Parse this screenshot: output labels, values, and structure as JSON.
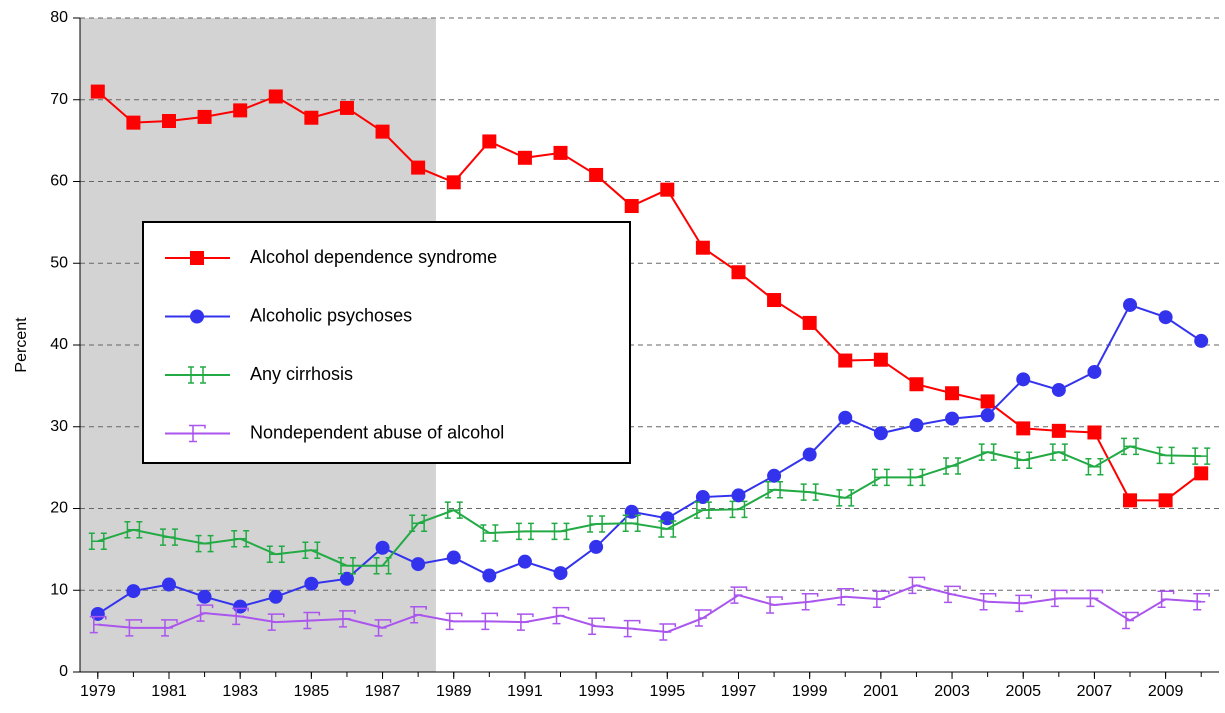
{
  "chart_data": {
    "type": "line",
    "y_label": "Percent",
    "x": [
      1979,
      1980,
      1981,
      1982,
      1983,
      1984,
      1985,
      1986,
      1987,
      1988,
      1989,
      1990,
      1991,
      1992,
      1993,
      1994,
      1995,
      1996,
      1997,
      1998,
      1999,
      2000,
      2001,
      2002,
      2003,
      2004,
      2005,
      2006,
      2007,
      2008,
      2009,
      2010
    ],
    "series": [
      {
        "name": "Alcohol dependence syndrome",
        "color": "#ff0000",
        "marker": "square",
        "values": [
          71.0,
          67.2,
          67.4,
          67.9,
          68.7,
          70.4,
          67.8,
          69.0,
          66.1,
          61.7,
          59.9,
          64.9,
          62.9,
          63.5,
          60.8,
          57.0,
          59.0,
          51.9,
          48.9,
          45.5,
          42.7,
          38.1,
          38.2,
          35.2,
          34.1,
          33.1,
          29.8,
          29.5,
          29.3,
          21.0,
          21.0,
          24.3
        ]
      },
      {
        "name": "Alcoholic psychoses",
        "color": "#3333ee",
        "marker": "circle",
        "values": [
          7.1,
          9.9,
          10.7,
          9.2,
          8.0,
          9.2,
          10.8,
          11.4,
          15.2,
          13.2,
          14.0,
          11.8,
          13.5,
          12.1,
          15.3,
          19.6,
          18.8,
          21.4,
          21.6,
          24.0,
          26.6,
          31.1,
          29.2,
          30.2,
          31.0,
          31.4,
          35.8,
          34.5,
          36.7,
          44.9,
          43.4,
          40.5
        ]
      },
      {
        "name": "Any cirrhosis",
        "color": "#22aa44",
        "marker": "h-glyph",
        "values": [
          16.0,
          17.4,
          16.5,
          15.7,
          16.3,
          14.4,
          14.9,
          13.0,
          13.0,
          18.2,
          19.8,
          17.0,
          17.2,
          17.2,
          18.1,
          18.2,
          17.5,
          19.8,
          19.9,
          22.3,
          22.0,
          21.3,
          23.8,
          23.8,
          25.2,
          26.9,
          25.9,
          26.9,
          25.1,
          27.6,
          26.5,
          26.4
        ]
      },
      {
        "name": "Nondependent abuse of alcohol",
        "color": "#aa55ee",
        "marker": "f-glyph",
        "values": [
          5.8,
          5.4,
          5.4,
          7.2,
          6.8,
          6.1,
          6.3,
          6.5,
          5.4,
          7.0,
          6.2,
          6.2,
          6.1,
          6.9,
          5.6,
          5.3,
          4.9,
          6.6,
          9.4,
          8.2,
          8.6,
          9.2,
          8.9,
          10.6,
          9.5,
          8.6,
          8.4,
          9.0,
          9.0,
          6.3,
          8.9,
          8.6
        ]
      }
    ],
    "xlim": [
      1978.5,
      2010.5
    ],
    "xticks": [
      1979,
      1981,
      1983,
      1985,
      1987,
      1989,
      1991,
      1993,
      1995,
      1997,
      1999,
      2001,
      2003,
      2005,
      2007,
      2009
    ],
    "ylim": [
      0,
      80
    ],
    "yticks": [
      0,
      10,
      20,
      30,
      40,
      50,
      60,
      70,
      80
    ],
    "grid": true,
    "shaded_range": [
      1978.5,
      1988.5
    ],
    "shade_color": "#d3d3d3",
    "legend": "middle-left"
  }
}
